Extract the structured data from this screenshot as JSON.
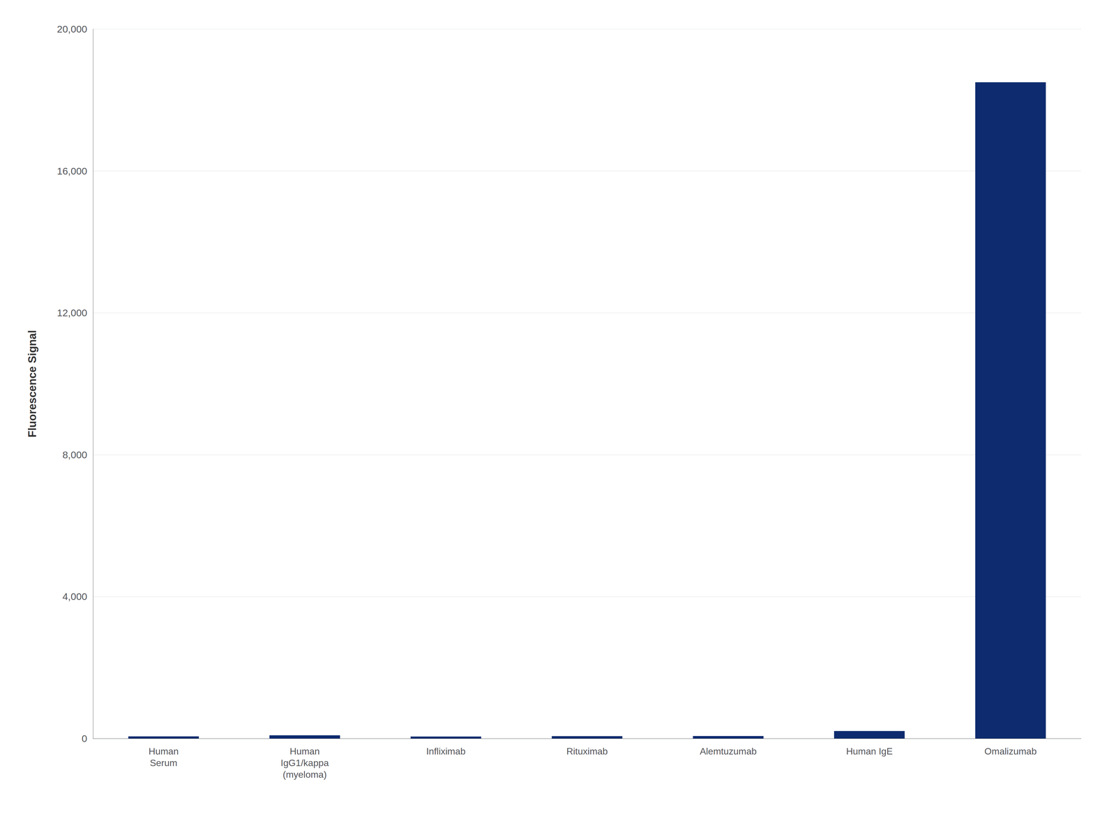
{
  "chart_data": {
    "type": "bar",
    "categories": [
      "Human\nSerum",
      "Human\nIgG1/kappa\n(myeloma)",
      "Infliximab",
      "Rituximab",
      "Alemtuzumab",
      "Human IgE",
      "Omalizumab"
    ],
    "values": [
      60,
      90,
      55,
      65,
      70,
      210,
      18500
    ],
    "color": "#0d2b6e",
    "ylabel": "Fluorescence Signal",
    "ylim": [
      0,
      20000
    ],
    "yticks": [
      0,
      {
        "value": 4000,
        "label": "4,000"
      },
      {
        "value": 8000,
        "label": "8,000"
      },
      {
        "value": 12000,
        "label": "12,000"
      },
      {
        "value": 16000,
        "label": "16,000"
      },
      {
        "value": 20000,
        "label": "20,000"
      }
    ],
    "grid": true
  }
}
